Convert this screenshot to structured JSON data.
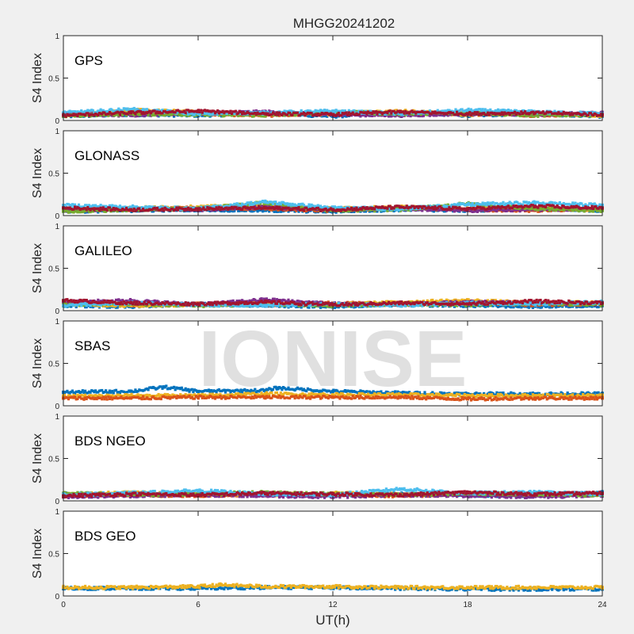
{
  "figure": {
    "title": "MHGG20241202",
    "watermark": "IONISE",
    "xlabel": "UT(h)"
  },
  "colors": {
    "background": "#f0f0f0",
    "axes_bg": "#ffffff",
    "axis_line": "#262626",
    "watermark": "#d9d9d9",
    "palette": [
      "#0072bd",
      "#d95319",
      "#edb120",
      "#7e2f8e",
      "#77ac30",
      "#4dbeee",
      "#a2142f"
    ]
  },
  "chart_data": [
    {
      "type": "scatter",
      "label": "GPS",
      "ylabel": "S4 Index",
      "xlim": [
        0,
        24
      ],
      "ylim": [
        0,
        1
      ],
      "yticks": [
        0,
        0.5,
        1
      ],
      "yticklabels": [
        "0",
        "0.5",
        "1"
      ],
      "xticks": [
        0,
        6,
        12,
        18,
        24
      ],
      "xticklabels": [],
      "series": [
        {
          "color_index": 0,
          "x": [
            0,
            3,
            6,
            9,
            12,
            15,
            18,
            21,
            24
          ],
          "y": [
            0.05,
            0.07,
            0.06,
            0.08,
            0.05,
            0.09,
            0.06,
            0.08,
            0.05
          ]
        },
        {
          "color_index": 1,
          "x": [
            0,
            3,
            6,
            9,
            12,
            15,
            18,
            21,
            24
          ],
          "y": [
            0.07,
            0.1,
            0.08,
            0.06,
            0.09,
            0.07,
            0.1,
            0.06,
            0.08
          ]
        },
        {
          "color_index": 2,
          "x": [
            0,
            3,
            6,
            9,
            12,
            15,
            18,
            21,
            24
          ],
          "y": [
            0.06,
            0.12,
            0.1,
            0.07,
            0.08,
            0.11,
            0.07,
            0.09,
            0.06
          ]
        },
        {
          "color_index": 3,
          "x": [
            0,
            3,
            6,
            9,
            12,
            15,
            18,
            21,
            24
          ],
          "y": [
            0.08,
            0.06,
            0.09,
            0.1,
            0.07,
            0.06,
            0.08,
            0.07,
            0.09
          ]
        },
        {
          "color_index": 4,
          "x": [
            0,
            3,
            6,
            9,
            12,
            15,
            18,
            21,
            24
          ],
          "y": [
            0.05,
            0.08,
            0.07,
            0.06,
            0.1,
            0.08,
            0.09,
            0.06,
            0.07
          ]
        },
        {
          "color_index": 5,
          "x": [
            0,
            3,
            6,
            9,
            12,
            15,
            18,
            21,
            24
          ],
          "y": [
            0.09,
            0.13,
            0.08,
            0.09,
            0.11,
            0.08,
            0.12,
            0.1,
            0.08
          ]
        },
        {
          "color_index": 6,
          "x": [
            0,
            3,
            6,
            9,
            12,
            15,
            18,
            21,
            24
          ],
          "y": [
            0.06,
            0.09,
            0.11,
            0.08,
            0.07,
            0.1,
            0.08,
            0.09,
            0.07
          ]
        }
      ]
    },
    {
      "type": "scatter",
      "label": "GLONASS",
      "ylabel": "S4 Index",
      "xlim": [
        0,
        24
      ],
      "ylim": [
        0,
        1
      ],
      "yticks": [
        0,
        0.5,
        1
      ],
      "yticklabels": [
        "0",
        "0.5",
        "1"
      ],
      "xticks": [
        0,
        6,
        12,
        18,
        24
      ],
      "xticklabels": [],
      "series": [
        {
          "color_index": 0,
          "x": [
            0,
            3,
            6,
            9,
            12,
            15,
            18,
            21,
            24
          ],
          "y": [
            0.05,
            0.06,
            0.07,
            0.06,
            0.05,
            0.07,
            0.06,
            0.08,
            0.06
          ]
        },
        {
          "color_index": 1,
          "x": [
            0,
            3,
            6,
            9,
            12,
            15,
            18,
            21,
            24
          ],
          "y": [
            0.08,
            0.07,
            0.09,
            0.08,
            0.06,
            0.09,
            0.07,
            0.06,
            0.08
          ]
        },
        {
          "color_index": 2,
          "x": [
            0,
            3,
            6,
            9,
            12,
            15,
            18,
            21,
            24
          ],
          "y": [
            0.07,
            0.09,
            0.1,
            0.12,
            0.08,
            0.1,
            0.08,
            0.09,
            0.07
          ]
        },
        {
          "color_index": 3,
          "x": [
            0,
            3,
            6,
            9,
            12,
            15,
            18,
            21,
            24
          ],
          "y": [
            0.06,
            0.08,
            0.07,
            0.1,
            0.07,
            0.08,
            0.06,
            0.07,
            0.08
          ]
        },
        {
          "color_index": 4,
          "x": [
            0,
            3,
            6,
            9,
            12,
            15,
            18,
            21,
            24
          ],
          "y": [
            0.05,
            0.07,
            0.08,
            0.15,
            0.06,
            0.07,
            0.14,
            0.08,
            0.06
          ]
        },
        {
          "color_index": 5,
          "x": [
            0,
            3,
            6,
            9,
            12,
            15,
            18,
            21,
            24
          ],
          "y": [
            0.12,
            0.1,
            0.08,
            0.16,
            0.09,
            0.08,
            0.13,
            0.15,
            0.12
          ]
        },
        {
          "color_index": 6,
          "x": [
            0,
            3,
            6,
            9,
            12,
            15,
            18,
            21,
            24
          ],
          "y": [
            0.09,
            0.07,
            0.08,
            0.09,
            0.07,
            0.1,
            0.08,
            0.11,
            0.09
          ]
        }
      ]
    },
    {
      "type": "scatter",
      "label": "GALILEO",
      "ylabel": "S4 Index",
      "xlim": [
        0,
        24
      ],
      "ylim": [
        0,
        1
      ],
      "yticks": [
        0,
        0.5,
        1
      ],
      "yticklabels": [
        "0",
        "0.5",
        "1"
      ],
      "xticks": [
        0,
        6,
        12,
        18,
        24
      ],
      "xticklabels": [],
      "series": [
        {
          "color_index": 0,
          "x": [
            0,
            3,
            6,
            9,
            12,
            15,
            18,
            21,
            24
          ],
          "y": [
            0.06,
            0.05,
            0.08,
            0.06,
            0.05,
            0.07,
            0.06,
            0.05,
            0.06
          ]
        },
        {
          "color_index": 1,
          "x": [
            0,
            3,
            6,
            9,
            12,
            15,
            18,
            21,
            24
          ],
          "y": [
            0.09,
            0.07,
            0.08,
            0.07,
            0.09,
            0.08,
            0.1,
            0.07,
            0.08
          ]
        },
        {
          "color_index": 2,
          "x": [
            0,
            3,
            6,
            9,
            12,
            15,
            18,
            21,
            24
          ],
          "y": [
            0.08,
            0.06,
            0.07,
            0.09,
            0.07,
            0.1,
            0.12,
            0.09,
            0.1
          ]
        },
        {
          "color_index": 3,
          "x": [
            0,
            3,
            6,
            9,
            12,
            15,
            18,
            21,
            24
          ],
          "y": [
            0.1,
            0.12,
            0.07,
            0.13,
            0.08,
            0.07,
            0.1,
            0.09,
            0.08
          ]
        },
        {
          "color_index": 4,
          "x": [
            0,
            3,
            6,
            9,
            12,
            15,
            18,
            21,
            24
          ],
          "y": [
            0.07,
            0.08,
            0.06,
            0.07,
            0.06,
            0.08,
            0.07,
            0.09,
            0.07
          ]
        },
        {
          "color_index": 5,
          "x": [
            0,
            3,
            6,
            9,
            12,
            15,
            18,
            21,
            24
          ],
          "y": [
            0.06,
            0.09,
            0.07,
            0.06,
            0.08,
            0.06,
            0.09,
            0.08,
            0.1
          ]
        },
        {
          "color_index": 6,
          "x": [
            0,
            3,
            6,
            9,
            12,
            15,
            18,
            21,
            24
          ],
          "y": [
            0.12,
            0.09,
            0.08,
            0.1,
            0.07,
            0.09,
            0.08,
            0.11,
            0.09
          ]
        }
      ]
    },
    {
      "type": "scatter",
      "label": "SBAS",
      "ylabel": "S4 Index",
      "xlim": [
        0,
        24
      ],
      "ylim": [
        0,
        1
      ],
      "yticks": [
        0,
        0.5,
        1
      ],
      "yticklabels": [
        "0",
        "0.5",
        "1"
      ],
      "xticks": [
        0,
        6,
        12,
        18,
        24
      ],
      "xticklabels": [],
      "series": [
        {
          "color_index": 0,
          "x": [
            0,
            3,
            4.5,
            6,
            9,
            9.5,
            12,
            15,
            18,
            21,
            24
          ],
          "y": [
            0.16,
            0.17,
            0.22,
            0.17,
            0.18,
            0.21,
            0.17,
            0.15,
            0.14,
            0.14,
            0.14
          ]
        },
        {
          "color_index": 2,
          "x": [
            0,
            3,
            6,
            9,
            12,
            15,
            18,
            21,
            24
          ],
          "y": [
            0.11,
            0.12,
            0.12,
            0.14,
            0.13,
            0.13,
            0.12,
            0.12,
            0.12
          ]
        },
        {
          "color_index": 1,
          "x": [
            0,
            3,
            6,
            9,
            12,
            15,
            18,
            21,
            24
          ],
          "y": [
            0.09,
            0.09,
            0.1,
            0.1,
            0.1,
            0.1,
            0.08,
            0.09,
            0.09
          ]
        }
      ]
    },
    {
      "type": "scatter",
      "label": "BDS NGEO",
      "ylabel": "S4 Index",
      "xlim": [
        0,
        24
      ],
      "ylim": [
        0,
        1
      ],
      "yticks": [
        0,
        0.5,
        1
      ],
      "yticklabels": [
        "0",
        "0.5",
        "1"
      ],
      "xticks": [
        0,
        6,
        12,
        18,
        24
      ],
      "xticklabels": [],
      "series": [
        {
          "color_index": 0,
          "x": [
            0,
            3,
            6,
            9,
            12,
            15,
            18,
            21,
            24
          ],
          "y": [
            0.08,
            0.07,
            0.09,
            0.08,
            0.07,
            0.08,
            0.07,
            0.06,
            0.1
          ]
        },
        {
          "color_index": 1,
          "x": [
            0,
            3,
            6,
            9,
            12,
            15,
            18,
            21,
            24
          ],
          "y": [
            0.06,
            0.07,
            0.06,
            0.08,
            0.07,
            0.06,
            0.08,
            0.07,
            0.08
          ]
        },
        {
          "color_index": 2,
          "x": [
            0,
            3,
            6,
            9,
            12,
            15,
            18,
            21,
            24
          ],
          "y": [
            0.07,
            0.1,
            0.08,
            0.07,
            0.09,
            0.08,
            0.09,
            0.08,
            0.07
          ]
        },
        {
          "color_index": 3,
          "x": [
            0,
            3,
            6,
            9,
            12,
            15,
            18,
            21,
            24
          ],
          "y": [
            0.05,
            0.06,
            0.07,
            0.06,
            0.05,
            0.07,
            0.06,
            0.05,
            0.06
          ]
        },
        {
          "color_index": 4,
          "x": [
            0,
            3,
            6,
            9,
            12,
            15,
            18,
            21,
            24
          ],
          "y": [
            0.09,
            0.07,
            0.08,
            0.1,
            0.08,
            0.07,
            0.09,
            0.08,
            0.07
          ]
        },
        {
          "color_index": 5,
          "x": [
            0,
            3,
            6,
            9,
            12,
            15,
            18,
            21,
            24
          ],
          "y": [
            0.07,
            0.09,
            0.12,
            0.08,
            0.07,
            0.14,
            0.09,
            0.1,
            0.08
          ]
        },
        {
          "color_index": 6,
          "x": [
            0,
            3,
            6,
            9,
            12,
            15,
            18,
            21,
            24
          ],
          "y": [
            0.06,
            0.08,
            0.07,
            0.09,
            0.08,
            0.07,
            0.1,
            0.08,
            0.09
          ]
        }
      ]
    },
    {
      "type": "scatter",
      "label": "BDS GEO",
      "ylabel": "S4 Index",
      "xlim": [
        0,
        24
      ],
      "ylim": [
        0,
        1
      ],
      "yticks": [
        0,
        0.5,
        1
      ],
      "yticklabels": [
        "0",
        "0.5",
        "1"
      ],
      "xticks": [
        0,
        6,
        12,
        18,
        24
      ],
      "xticklabels": [
        "0",
        "6",
        "12",
        "18",
        "24"
      ],
      "series": [
        {
          "color_index": 0,
          "x": [
            0,
            3,
            6,
            9,
            12,
            15,
            18,
            21,
            24
          ],
          "y": [
            0.09,
            0.09,
            0.09,
            0.1,
            0.1,
            0.09,
            0.08,
            0.08,
            0.08
          ]
        },
        {
          "color_index": 2,
          "x": [
            0,
            3,
            6,
            7,
            9,
            12,
            15,
            18,
            21,
            24
          ],
          "y": [
            0.1,
            0.1,
            0.11,
            0.13,
            0.11,
            0.11,
            0.1,
            0.1,
            0.1,
            0.1
          ]
        }
      ]
    }
  ]
}
